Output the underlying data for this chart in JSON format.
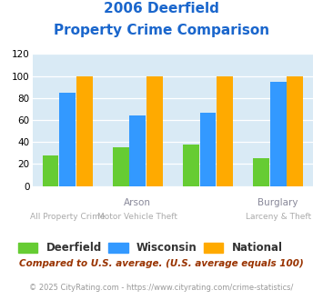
{
  "title_line1": "2006 Deerfield",
  "title_line2": "Property Crime Comparison",
  "deerfield": [
    28,
    35,
    38,
    25
  ],
  "wisconsin": [
    85,
    64,
    67,
    95
  ],
  "national": [
    100,
    100,
    100,
    100
  ],
  "colors": {
    "deerfield": "#66cc33",
    "wisconsin": "#3399ff",
    "national": "#ffaa00"
  },
  "ylim": [
    0,
    120
  ],
  "yticks": [
    0,
    20,
    40,
    60,
    80,
    100,
    120
  ],
  "plot_bg": "#d9eaf5",
  "title_color": "#1a66cc",
  "top_xlabels": [
    "",
    "Arson",
    "",
    "Burglary"
  ],
  "bot_xlabels": [
    "All Property Crime",
    "Motor Vehicle Theft",
    "",
    "Larceny & Theft"
  ],
  "legend_labels": [
    "Deerfield",
    "Wisconsin",
    "National"
  ],
  "footer_text": "Compared to U.S. average. (U.S. average equals 100)",
  "credit_text": "© 2025 CityRating.com - https://www.cityrating.com/crime-statistics/",
  "footer_color": "#993300",
  "credit_color": "#999999",
  "top_label_color": "#888899",
  "bot_label_color": "#aaaaaa"
}
